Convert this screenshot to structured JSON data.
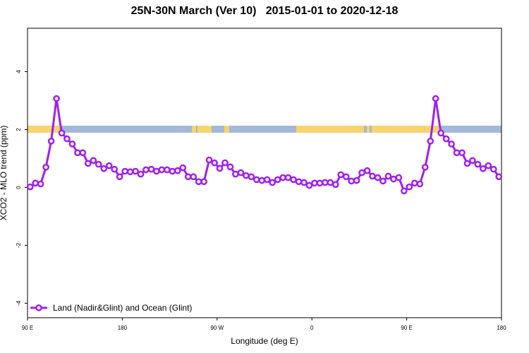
{
  "chart_data": {
    "type": "line",
    "title": "25N-30N March (Ver 10)   2015-01-01 to 2020-12-18",
    "x_label": "Longitude (deg E)",
    "y_label": "XCO2 - MLO trend (ppm)",
    "xlim": [
      90,
      540
    ],
    "ylim": [
      -4.5,
      5.5
    ],
    "xticks": [
      {
        "value": 90,
        "label": "90 E"
      },
      {
        "value": 180,
        "label": "180"
      },
      {
        "value": 270,
        "label": "90 W"
      },
      {
        "value": 360,
        "label": "0"
      },
      {
        "value": 450,
        "label": "90 E"
      },
      {
        "value": 540,
        "label": "180"
      }
    ],
    "yticks": [
      -4,
      -2,
      0,
      2,
      4
    ],
    "legend": "bottom-left",
    "x": [
      92.5,
      97.5,
      102.5,
      107.5,
      112.5,
      117.5,
      122.5,
      127.5,
      132.5,
      137.5,
      142.5,
      147.5,
      152.5,
      157.5,
      162.5,
      167.5,
      172.5,
      177.5,
      182.5,
      187.5,
      192.5,
      197.5,
      202.5,
      207.5,
      212.5,
      217.5,
      222.5,
      227.5,
      232.5,
      237.5,
      242.5,
      247.5,
      252.5,
      257.5,
      262.5,
      267.5,
      272.5,
      277.5,
      282.5,
      287.5,
      292.5,
      297.5,
      302.5,
      307.5,
      312.5,
      317.5,
      322.5,
      327.5,
      332.5,
      337.5,
      342.5,
      347.5,
      352.5,
      357.5,
      362.5,
      367.5,
      372.5,
      377.5,
      382.5,
      387.5,
      392.5,
      397.5,
      402.5,
      407.5,
      412.5,
      417.5,
      422.5,
      427.5,
      432.5,
      437.5,
      442.5,
      447.5,
      452.5,
      457.5,
      462.5,
      467.5,
      472.5,
      477.5,
      482.5,
      487.5,
      492.5,
      497.5,
      502.5,
      507.5,
      512.5,
      517.5,
      522.5,
      527.5,
      532.5,
      537.5
    ],
    "series": [
      {
        "name": "Land (Nadir&Glint) and Ocean (Glint)",
        "color": "#a020f0",
        "values": [
          0.02,
          0.15,
          0.12,
          0.7,
          1.6,
          3.07,
          1.88,
          1.68,
          1.5,
          1.2,
          1.2,
          0.83,
          0.93,
          0.8,
          0.65,
          0.75,
          0.63,
          0.37,
          0.56,
          0.54,
          0.56,
          0.46,
          0.61,
          0.63,
          0.56,
          0.61,
          0.61,
          0.56,
          0.58,
          0.68,
          0.37,
          0.37,
          0.2,
          0.2,
          0.95,
          0.85,
          0.66,
          0.85,
          0.71,
          0.46,
          0.51,
          0.41,
          0.37,
          0.27,
          0.24,
          0.27,
          0.17,
          0.27,
          0.34,
          0.34,
          0.27,
          0.2,
          0.17,
          0.07,
          0.15,
          0.15,
          0.17,
          0.17,
          0.1,
          0.44,
          0.37,
          0.22,
          0.24,
          0.51,
          0.58,
          0.39,
          0.34,
          0.22,
          0.39,
          0.29,
          0.34,
          -0.12,
          0.02,
          0.15,
          0.12,
          0.7,
          1.6,
          3.07,
          1.88,
          1.68,
          1.5,
          1.2,
          1.2,
          0.83,
          0.93,
          0.8,
          0.65,
          0.75,
          0.63,
          0.37
        ]
      }
    ]
  }
}
